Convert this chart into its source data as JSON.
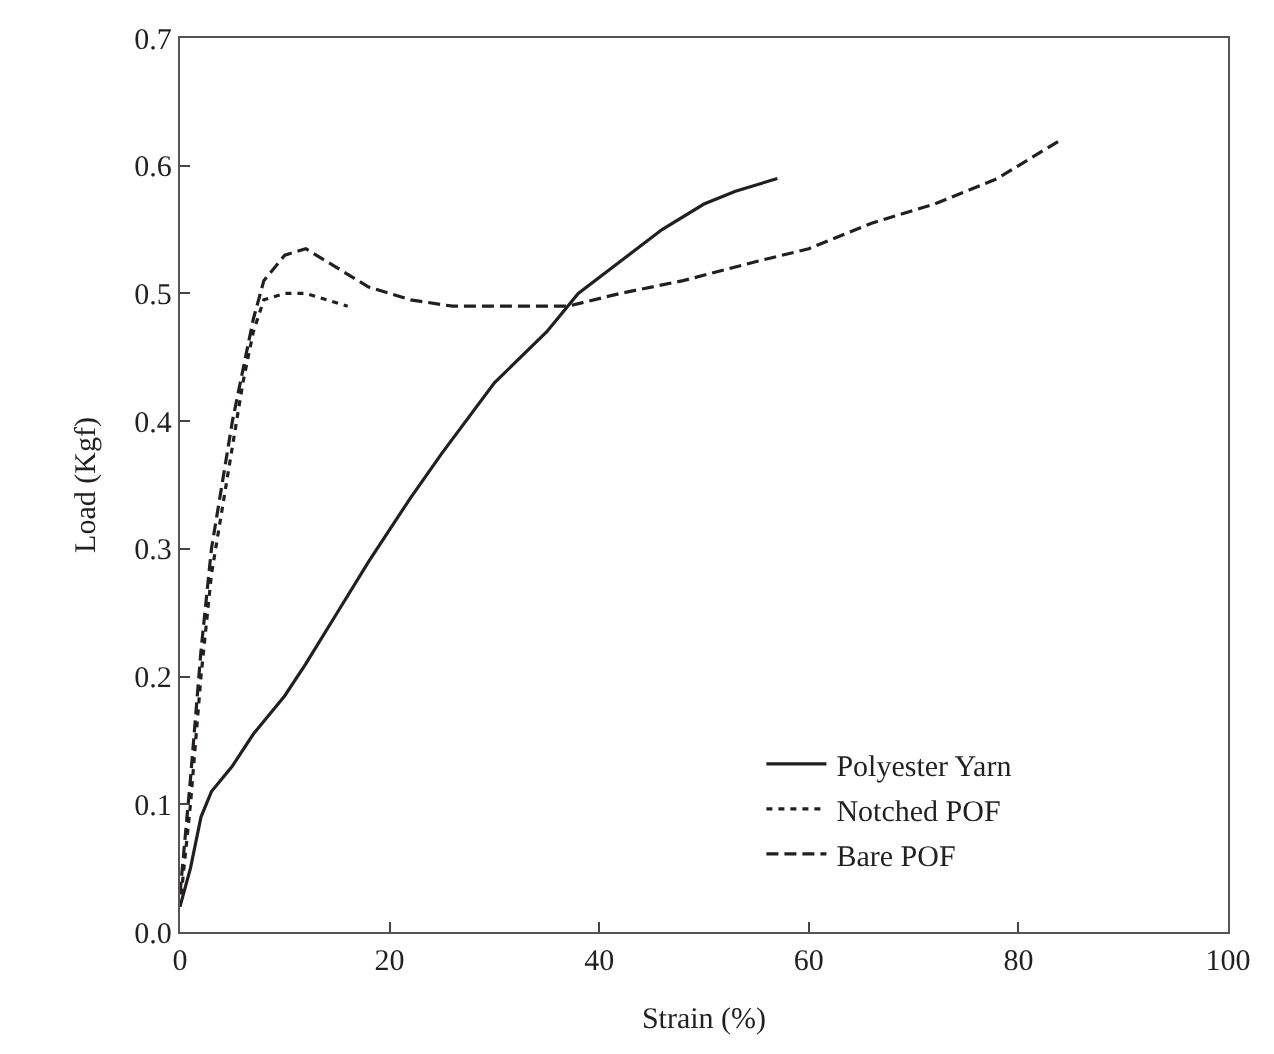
{
  "chart_data": {
    "type": "line",
    "xlabel": "Strain (%)",
    "ylabel": "Load (Kgf)",
    "xlim": [
      0,
      100
    ],
    "xticks": [
      0,
      20,
      40,
      60,
      80,
      100
    ],
    "ylim": [
      0,
      0.7
    ],
    "yticks": [
      {
        "value": 0,
        "label": "0.0"
      },
      0.1,
      0.2,
      0.3,
      0.4,
      0.5,
      0.6,
      0.7
    ],
    "legend": "bottom right",
    "marker": "none",
    "series": [
      {
        "name": "Polyester Yarn",
        "color": "#231f20",
        "line_style": "solid",
        "x": [
          0,
          1,
          2,
          3,
          5,
          7,
          10,
          12,
          15,
          18,
          22,
          25,
          30,
          35,
          38,
          42,
          46,
          50,
          53,
          57
        ],
        "values": [
          0.02,
          0.05,
          0.09,
          0.11,
          0.13,
          0.155,
          0.185,
          0.21,
          0.25,
          0.29,
          0.34,
          0.375,
          0.43,
          0.47,
          0.5,
          0.525,
          0.55,
          0.57,
          0.58,
          0.59
        ]
      },
      {
        "name": "Notched POF",
        "color": "#231f20",
        "line_style": "dotted",
        "x": [
          0,
          1,
          2,
          3,
          4,
          5,
          6,
          7,
          8,
          10,
          12,
          14,
          16
        ],
        "values": [
          0.02,
          0.1,
          0.2,
          0.28,
          0.33,
          0.38,
          0.43,
          0.47,
          0.495,
          0.5,
          0.5,
          0.495,
          0.49
        ]
      },
      {
        "name": "Bare POF",
        "color": "#231f20",
        "line_style": "dashed",
        "x": [
          0,
          1,
          2,
          3,
          4,
          5,
          6,
          7,
          8,
          10,
          12,
          15,
          18,
          22,
          26,
          32,
          37,
          42,
          48,
          55,
          60,
          66,
          72,
          78,
          82,
          84
        ],
        "values": [
          0.03,
          0.12,
          0.22,
          0.3,
          0.35,
          0.4,
          0.44,
          0.48,
          0.51,
          0.53,
          0.535,
          0.52,
          0.505,
          0.495,
          0.49,
          0.49,
          0.49,
          0.5,
          0.51,
          0.525,
          0.535,
          0.555,
          0.57,
          0.59,
          0.61,
          0.62
        ]
      }
    ]
  }
}
